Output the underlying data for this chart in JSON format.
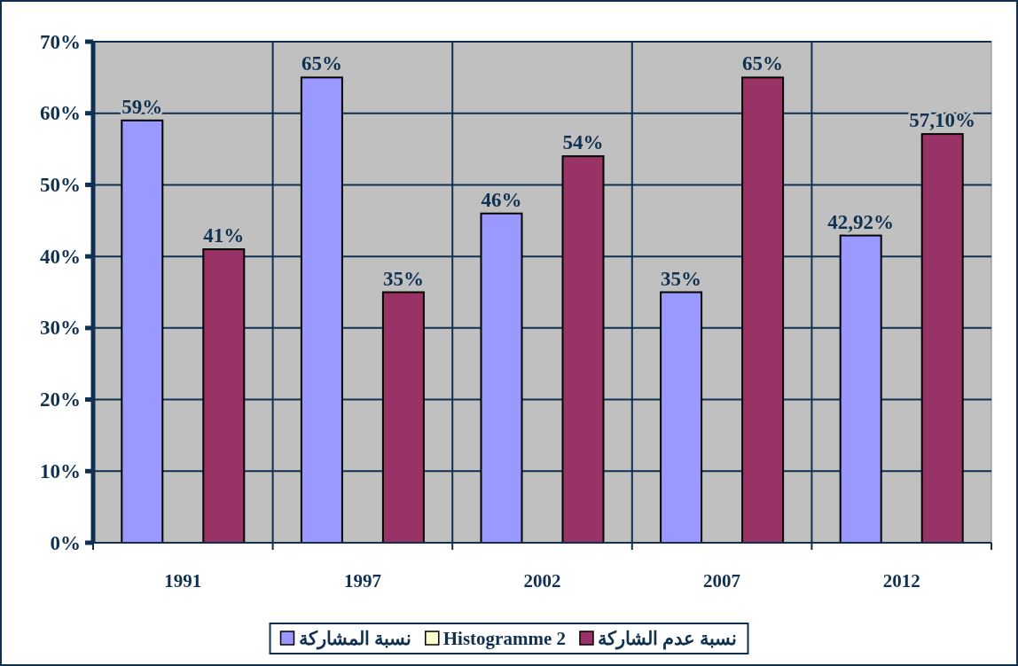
{
  "chart_data": {
    "type": "bar",
    "categories": [
      "1991",
      "1997",
      "2002",
      "2007",
      "2012"
    ],
    "series": [
      {
        "name": "نسبة المشاركة",
        "color": "#9999ff",
        "values": [
          59,
          65,
          46,
          35,
          42.92
        ],
        "value_labels": [
          "59%",
          "65%",
          "46%",
          "35%",
          "42,92%"
        ]
      },
      {
        "name": "Histogramme 2",
        "color": "#ffffcc",
        "values": [
          null,
          null,
          null,
          null,
          null
        ]
      },
      {
        "name": "نسبة عدم الشاركة",
        "color": "#993366",
        "values": [
          41,
          35,
          54,
          65,
          57.1
        ],
        "value_labels": [
          "41%",
          "35%",
          "54%",
          "65%",
          "57,10%"
        ]
      }
    ],
    "ylim": [
      0,
      70
    ],
    "yticks": [
      {
        "value": 0,
        "label": "0%"
      },
      {
        "value": 10,
        "label": "10%"
      },
      {
        "value": 20,
        "label": "20%"
      },
      {
        "value": 30,
        "label": "30%"
      },
      {
        "value": 40,
        "label": "40%"
      },
      {
        "value": 50,
        "label": "50%"
      },
      {
        "value": 60,
        "label": "60%"
      },
      {
        "value": 70,
        "label": "70%"
      }
    ],
    "grid": true,
    "legend": "bottom"
  }
}
